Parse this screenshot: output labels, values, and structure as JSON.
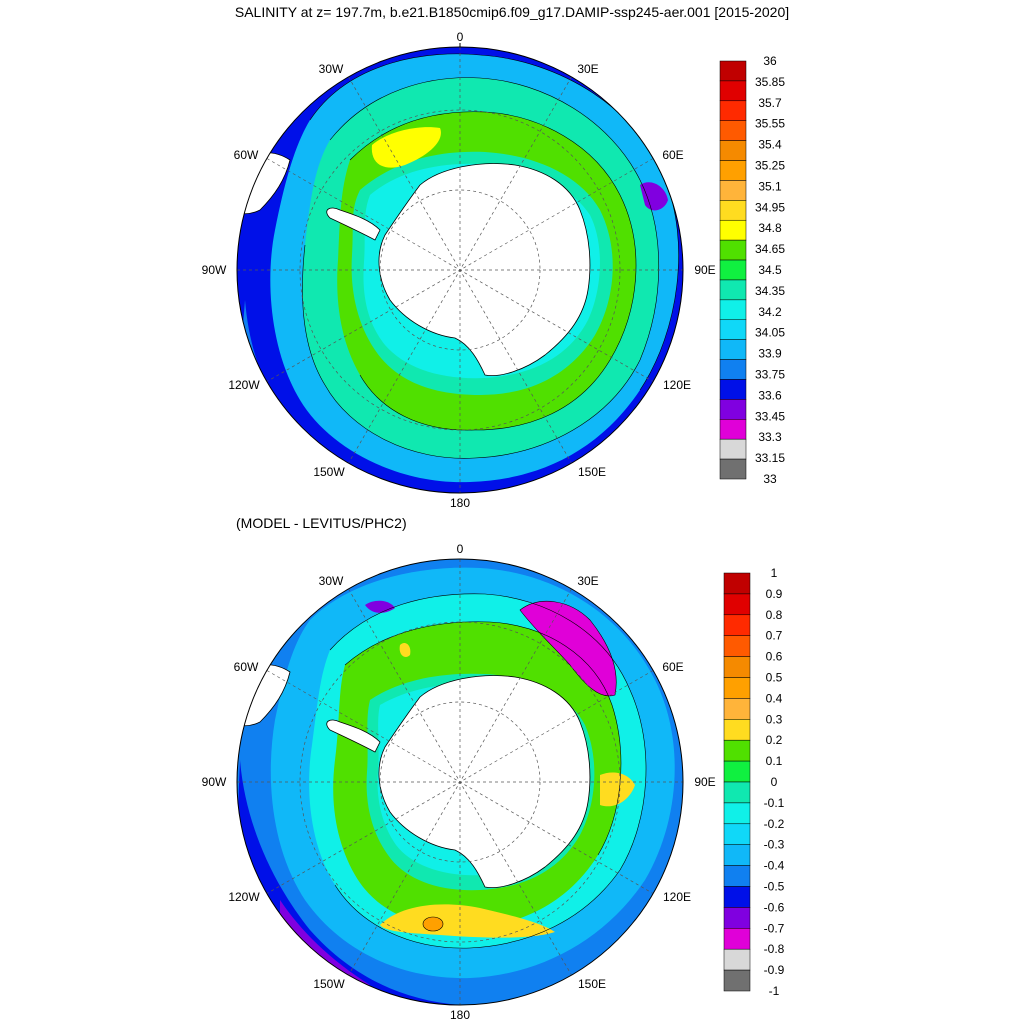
{
  "title": "SALINITY at z= 197.7m, b.e21.B1850cmip6.f09_g17.DAMIP-ssp245-aer.001 [2015-2020]",
  "subtitle": "(MODEL - LEVITUS/PHC2)",
  "longitude_labels": [
    "0",
    "30E",
    "60E",
    "90E",
    "120E",
    "150E",
    "180",
    "150W",
    "120W",
    "90W",
    "60W",
    "30W"
  ],
  "colorbar_top": {
    "labels": [
      "36",
      "35.85",
      "35.7",
      "35.55",
      "35.4",
      "35.25",
      "35.1",
      "34.95",
      "34.8",
      "34.65",
      "34.5",
      "34.35",
      "34.2",
      "34.05",
      "33.9",
      "33.75",
      "33.6",
      "33.45",
      "33.3",
      "33.15",
      "33"
    ],
    "colors": [
      "#c00000",
      "#e00000",
      "#ff2a00",
      "#ff5a00",
      "#f58a00",
      "#ffa000",
      "#ffb43a",
      "#ffdc20",
      "#ffff00",
      "#50e000",
      "#10f040",
      "#10e8b0",
      "#10f0e8",
      "#10d8f8",
      "#10b8f8",
      "#1080f0",
      "#0010e8",
      "#8000e0",
      "#e000d8",
      "#d8d8d8",
      "#707070"
    ]
  },
  "colorbar_bottom": {
    "labels": [
      "1",
      "0.9",
      "0.8",
      "0.7",
      "0.6",
      "0.5",
      "0.4",
      "0.3",
      "0.2",
      "0.1",
      "0",
      "-0.1",
      "-0.2",
      "-0.3",
      "-0.4",
      "-0.5",
      "-0.6",
      "-0.7",
      "-0.8",
      "-0.9",
      "-1"
    ],
    "colors": [
      "#c00000",
      "#e00000",
      "#ff2a00",
      "#ff5a00",
      "#f58a00",
      "#ffa000",
      "#ffb43a",
      "#ffdc20",
      "#50e000",
      "#10f040",
      "#10e8b0",
      "#10f0e8",
      "#10d8f8",
      "#10b8f8",
      "#1080f0",
      "#0010e8",
      "#8000e0",
      "#e000d8",
      "#d8d8d8",
      "#707070"
    ]
  },
  "colors": {
    "land": "#ffffff",
    "coast": "#000000",
    "grid": "#555555"
  }
}
